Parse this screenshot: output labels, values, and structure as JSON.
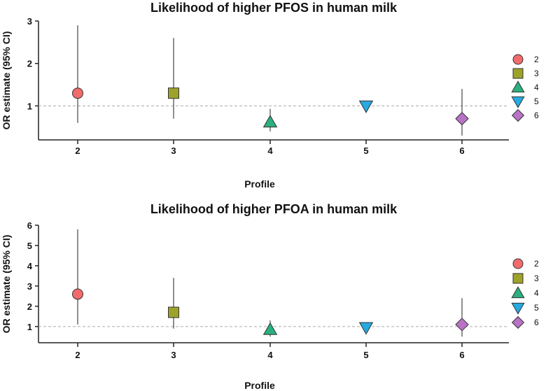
{
  "chart_data": [
    {
      "type": "scatter",
      "title": "Likelihood of higher PFOS in human milk",
      "xlabel": "Profile",
      "ylabel": "OR estimate (95% CI)",
      "categories": [
        "2",
        "3",
        "4",
        "5",
        "6"
      ],
      "y_ticks": [
        "1",
        "2",
        "3"
      ],
      "ylim": [
        0.2,
        3.0
      ],
      "reference_line": 1,
      "series": [
        {
          "name": "2",
          "x": "2",
          "or": 1.3,
          "ci": [
            0.6,
            2.9
          ],
          "color": "#f26b6b",
          "marker": "circle"
        },
        {
          "name": "3",
          "x": "3",
          "or": 1.3,
          "ci": [
            0.7,
            2.6
          ],
          "color": "#9da32a",
          "marker": "square"
        },
        {
          "name": "4",
          "x": "4",
          "or": 0.62,
          "ci": [
            0.4,
            0.93
          ],
          "color": "#2ab07e",
          "marker": "triangle-up"
        },
        {
          "name": "5",
          "x": "5",
          "or": 1.0,
          "ci": [
            1.0,
            1.0
          ],
          "color": "#27a9e1",
          "marker": "triangle-down"
        },
        {
          "name": "6",
          "x": "6",
          "or": 0.7,
          "ci": [
            0.3,
            1.4
          ],
          "color": "#b873c6",
          "marker": "diamond"
        }
      ],
      "legend": {
        "position": "right",
        "labels": [
          "2",
          "3",
          "4",
          "5",
          "6"
        ]
      }
    },
    {
      "type": "scatter",
      "title": "Likelihood of higher PFOA in human milk",
      "xlabel": "Profile",
      "ylabel": "OR estimate (95% CI)",
      "categories": [
        "2",
        "3",
        "4",
        "5",
        "6"
      ],
      "y_ticks": [
        "1",
        "2",
        "3",
        "4",
        "5",
        "6"
      ],
      "ylim": [
        0.2,
        6.0
      ],
      "reference_line": 1,
      "series": [
        {
          "name": "2",
          "x": "2",
          "or": 2.6,
          "ci": [
            1.1,
            5.8
          ],
          "color": "#f26b6b",
          "marker": "circle"
        },
        {
          "name": "3",
          "x": "3",
          "or": 1.7,
          "ci": [
            0.9,
            3.4
          ],
          "color": "#9da32a",
          "marker": "square"
        },
        {
          "name": "4",
          "x": "4",
          "or": 0.85,
          "ci": [
            0.5,
            1.3
          ],
          "color": "#2ab07e",
          "marker": "triangle-up"
        },
        {
          "name": "5",
          "x": "5",
          "or": 0.95,
          "ci": [
            0.95,
            0.95
          ],
          "color": "#27a9e1",
          "marker": "triangle-down"
        },
        {
          "name": "6",
          "x": "6",
          "or": 1.1,
          "ci": [
            0.5,
            2.4
          ],
          "color": "#b873c6",
          "marker": "diamond"
        }
      ],
      "legend": {
        "position": "right",
        "labels": [
          "2",
          "3",
          "4",
          "5",
          "6"
        ]
      }
    }
  ]
}
